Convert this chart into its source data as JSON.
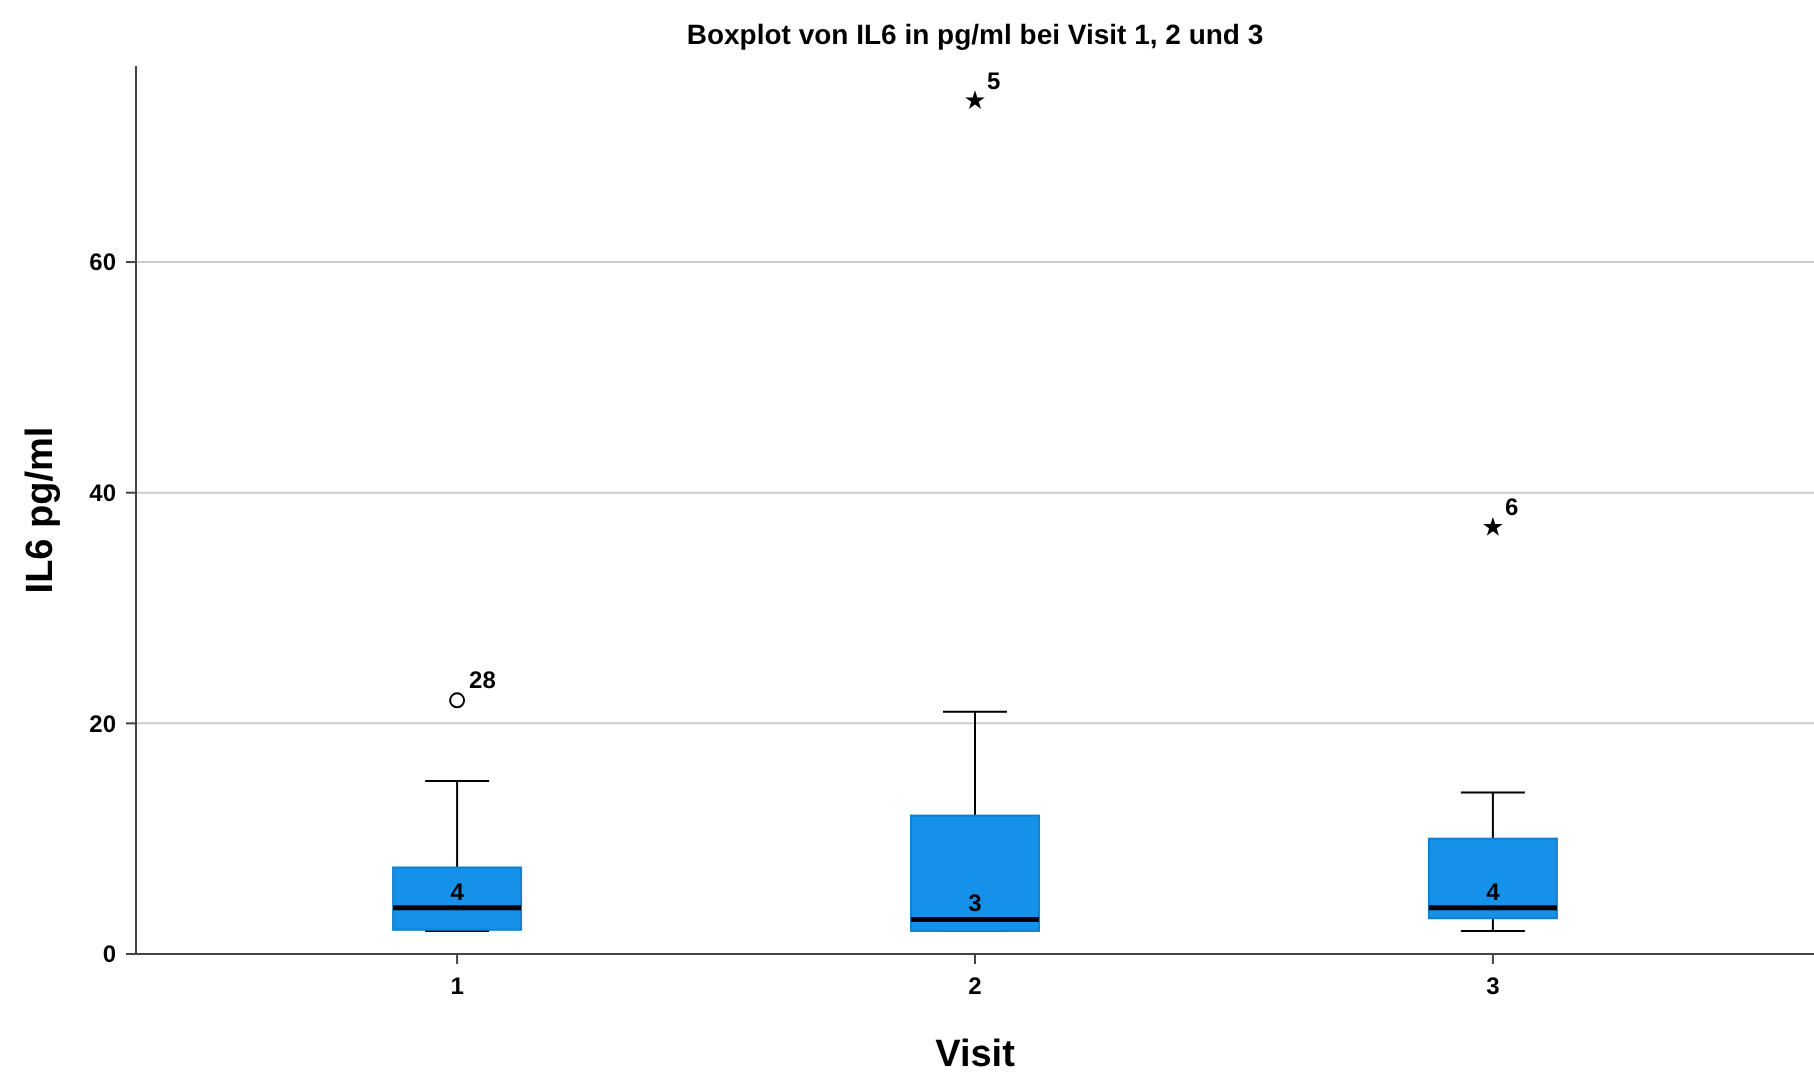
{
  "chart_data": {
    "type": "box",
    "title": "Boxplot von IL6 in pg/ml bei Visit 1, 2 und 3",
    "xlabel": "Visit",
    "ylabel": "IL6 pg/ml",
    "categories": [
      "1",
      "2",
      "3"
    ],
    "boxes": [
      {
        "low": 2,
        "q1": 2.1,
        "median": 4,
        "q3": 7.5,
        "high": 15,
        "outliers": [
          22
        ]
      },
      {
        "low": 2,
        "q1": 2,
        "median": 3,
        "q3": 12,
        "high": 21,
        "outliers": [
          74
        ]
      },
      {
        "low": 2,
        "q1": 3.1,
        "median": 4,
        "q3": 10,
        "high": 14,
        "outliers": [
          37
        ]
      }
    ],
    "color": "#1591ea",
    "ylim": [
      0,
      77
    ],
    "yticks": [
      0,
      20,
      40,
      60
    ],
    "grid": "y",
    "annotations": [
      {
        "text": "4",
        "x": "1",
        "y": 4
      },
      {
        "text": "3",
        "x": "2",
        "y": 3
      },
      {
        "text": "4",
        "x": "3",
        "y": 4
      },
      "28",
      "5",
      "6"
    ]
  }
}
